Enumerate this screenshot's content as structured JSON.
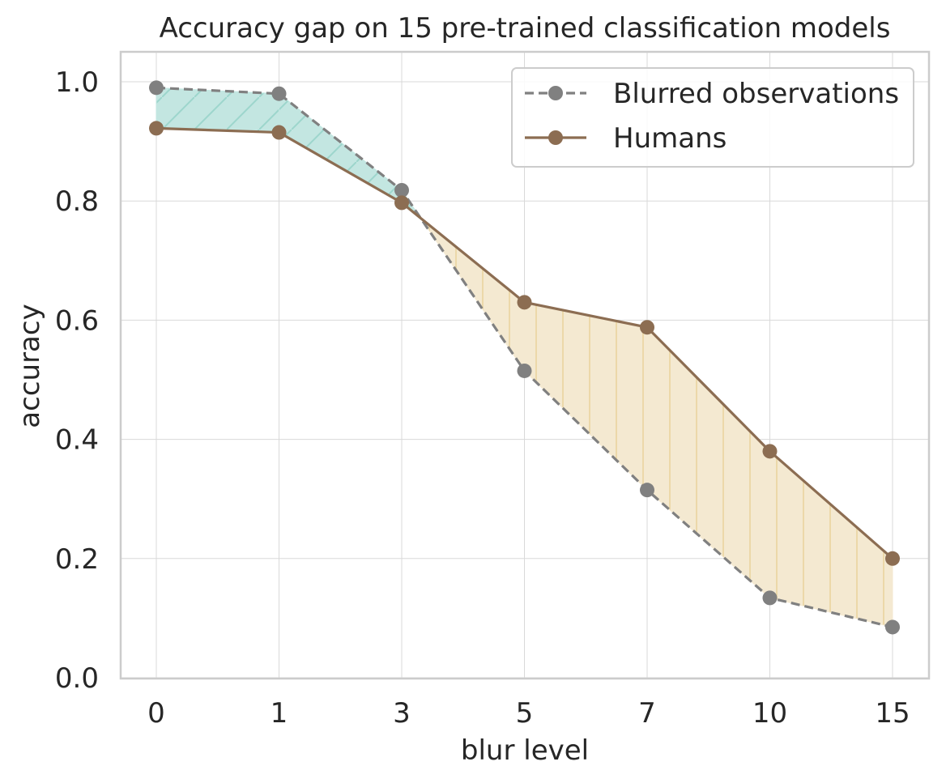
{
  "chart_data": {
    "type": "line",
    "title": "Accuracy gap on 15 pre-trained classification models",
    "xlabel": "blur level",
    "ylabel": "accuracy",
    "categories": [
      "0",
      "1",
      "3",
      "5",
      "7",
      "10",
      "15"
    ],
    "yticks": [
      "0.0",
      "0.2",
      "0.4",
      "0.6",
      "0.8",
      "1.0"
    ],
    "ylim": [
      0,
      1.05
    ],
    "grid": true,
    "legend_position": "top-right",
    "series": [
      {
        "name": "Blurred observations",
        "values": [
          0.99,
          0.98,
          0.818,
          0.515,
          0.315,
          0.134,
          0.085
        ],
        "color": "#808080",
        "line_style": "dashed",
        "marker": "circle"
      },
      {
        "name": "Humans",
        "values": [
          0.922,
          0.915,
          0.797,
          0.63,
          0.588,
          0.38,
          0.2
        ],
        "color": "#8c6d52",
        "line_style": "solid",
        "marker": "circle"
      }
    ],
    "fill_colors": {
      "series1_above": "#c3e6e1",
      "series2_above": "#f4e9d1"
    }
  }
}
